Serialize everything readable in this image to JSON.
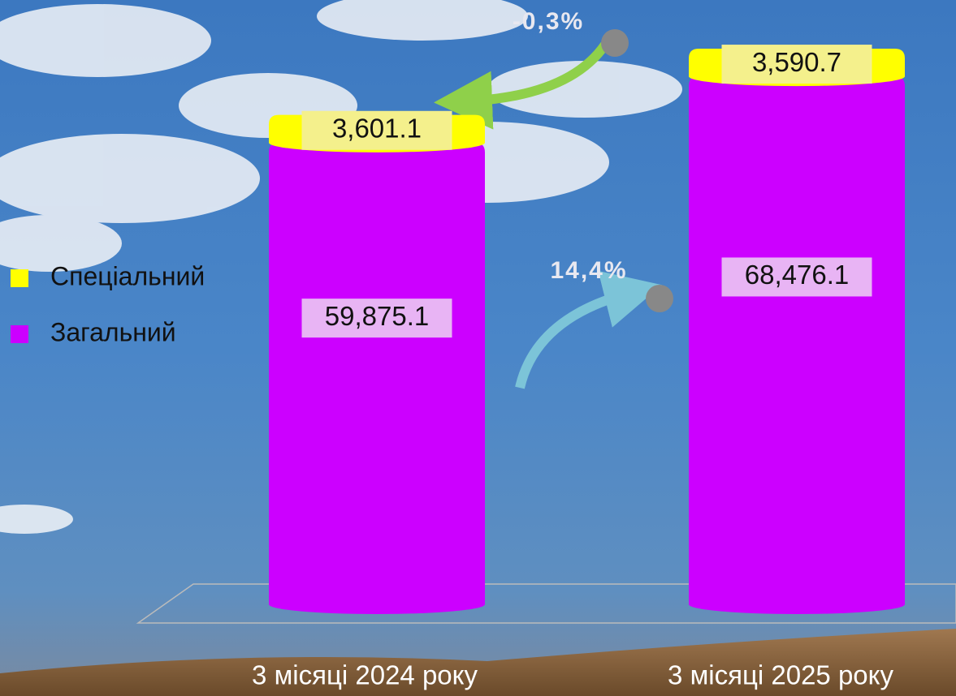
{
  "chart_data": {
    "type": "stacked-cylinder",
    "categories": [
      "3 місяці 2024 року",
      "3 місяці 2025 року"
    ],
    "series": [
      {
        "name": "Загальний",
        "color": "#cc00ff",
        "label_bg": "#e8b4f4",
        "values": [
          59875.1,
          68476.1
        ],
        "value_labels": [
          "59,875.1",
          "68,476.1"
        ]
      },
      {
        "name": "Спеціальний",
        "color": "#ffff00",
        "label_bg": "#f4f08c",
        "values": [
          3601.1,
          3590.7
        ],
        "value_labels": [
          "3,601.1",
          "3,590.7"
        ]
      }
    ],
    "annotations": [
      "-0,3%",
      "14,4%"
    ]
  }
}
